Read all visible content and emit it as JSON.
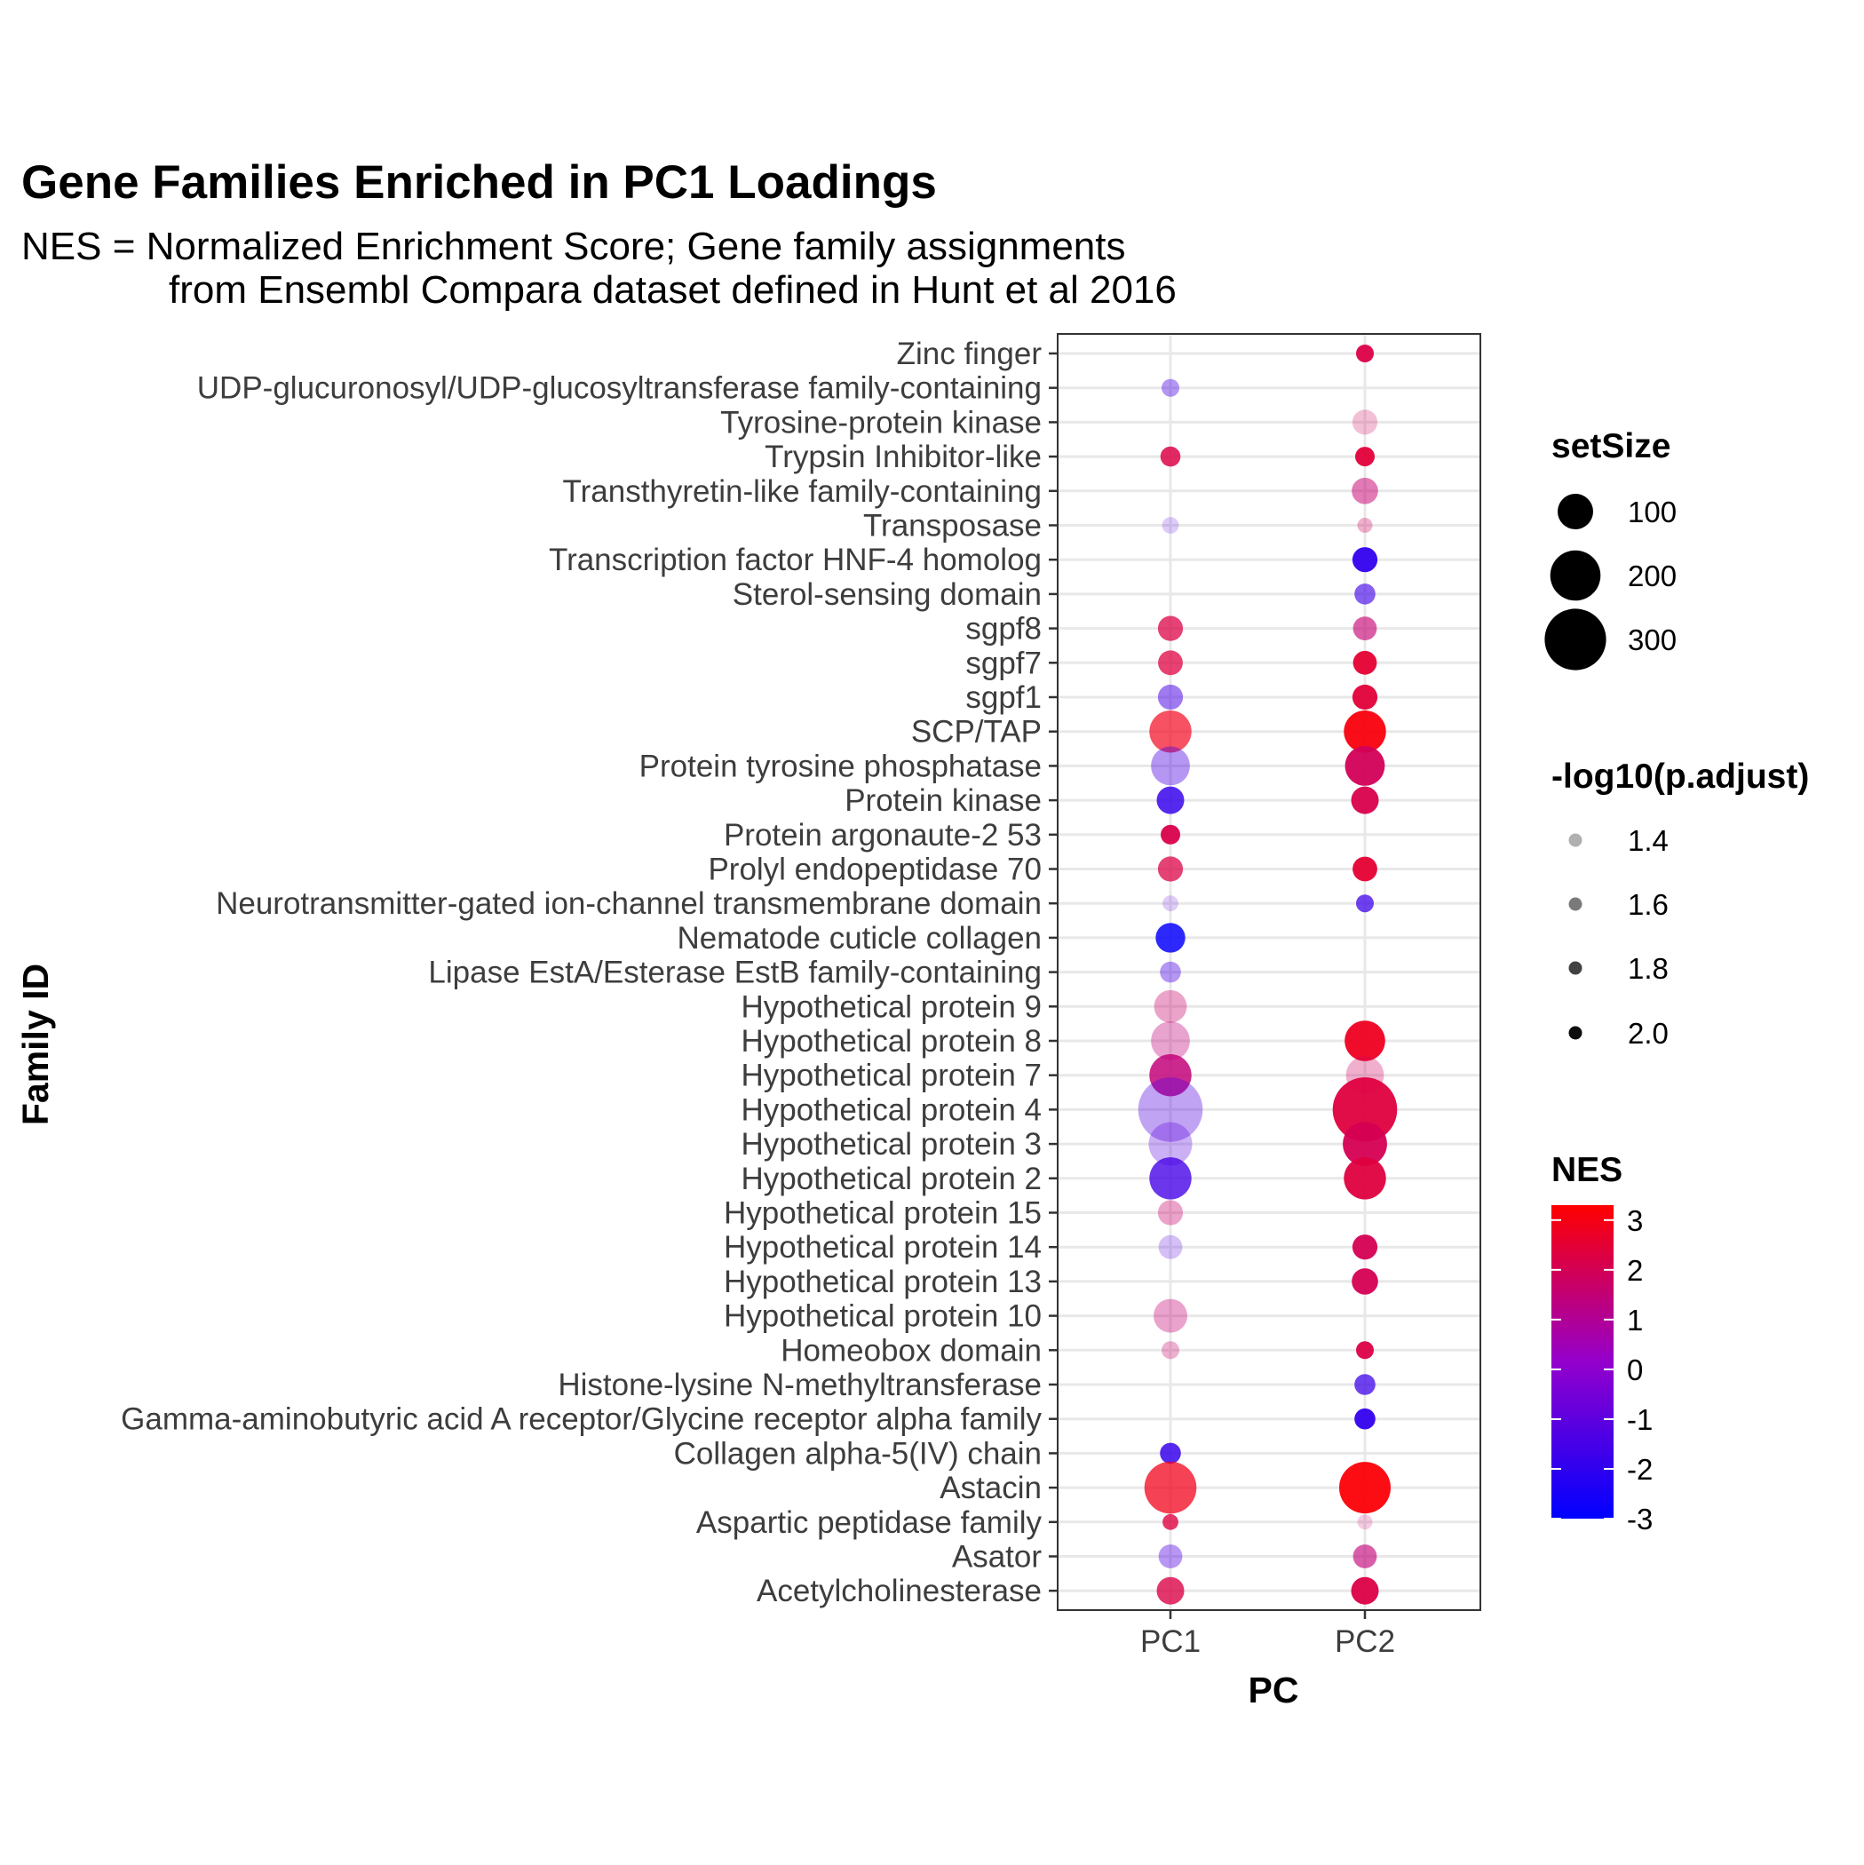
{
  "chart_data": {
    "type": "scatter",
    "title": "Gene Families Enriched in PC1 Loadings",
    "subtitle_lines": [
      "NES = Normalized Enrichment Score; Gene family assignments",
      "from Ensembl Compara dataset defined in Hunt et al 2016"
    ],
    "xlabel": "PC",
    "ylabel": "Family ID",
    "x_categories": [
      "PC1",
      "PC2"
    ],
    "y_categories": [
      "Zinc finger",
      "UDP-glucuronosyl/UDP-glucosyltransferase family-containing ",
      "Tyrosine-protein kinase",
      "Trypsin Inhibitor-like",
      "Transthyretin-like family-containing",
      "Transposase",
      "Transcription factor HNF-4 homolog",
      "Sterol-sensing domain",
      "sgpf8",
      "sgpf7",
      "sgpf1",
      "SCP/TAP",
      "Protein tyrosine phosphatase",
      "Protein kinase",
      "Protein argonaute-2 53",
      "Prolyl endopeptidase 70",
      "Neurotransmitter-gated ion-channel transmembrane domain",
      "Nematode cuticle collagen",
      "Lipase EstA/Esterase EstB family-containing",
      "Hypothetical protein 9",
      "Hypothetical protein 8",
      "Hypothetical protein 7",
      "Hypothetical protein 4",
      "Hypothetical protein 3",
      "Hypothetical protein 2",
      "Hypothetical protein 15",
      "Hypothetical protein 14",
      "Hypothetical protein 13",
      "Hypothetical protein 10",
      "Homeobox domain",
      "Histone-lysine N-methyltransferase",
      "Gamma-aminobutyric acid A receptor/Glycine receptor alpha family",
      "Collagen alpha-5(IV) chain",
      "Astacin",
      "Aspartic peptidase family",
      "Asator",
      "Acetylcholinesterase"
    ],
    "points": [
      {
        "family": "Zinc finger",
        "pc": "PC2",
        "setSize": 25,
        "nlog10p": 2.0,
        "NES": 2.2
      },
      {
        "family": "UDP-glucuronosyl/UDP-glucosyltransferase family-containing ",
        "pc": "PC1",
        "setSize": 25,
        "nlog10p": 1.5,
        "NES": -1.5
      },
      {
        "family": "Tyrosine-protein kinase",
        "pc": "PC2",
        "setSize": 50,
        "nlog10p": 1.35,
        "NES": 1.8
      },
      {
        "family": "Trypsin Inhibitor-like",
        "pc": "PC1",
        "setSize": 32,
        "nlog10p": 1.9,
        "NES": 2.2
      },
      {
        "family": "Trypsin Inhibitor-like",
        "pc": "PC2",
        "setSize": 30,
        "nlog10p": 2.0,
        "NES": 2.4
      },
      {
        "family": "Transthyretin-like family-containing",
        "pc": "PC2",
        "setSize": 55,
        "nlog10p": 1.6,
        "NES": 1.5
      },
      {
        "family": "Transposase",
        "pc": "PC1",
        "setSize": 22,
        "nlog10p": 1.3,
        "NES": -1.3
      },
      {
        "family": "Transposase",
        "pc": "PC2",
        "setSize": 18,
        "nlog10p": 1.4,
        "NES": 1.8
      },
      {
        "family": "Transcription factor HNF-4 homolog",
        "pc": "PC2",
        "setSize": 50,
        "nlog10p": 2.0,
        "NES": -2.0
      },
      {
        "family": "Sterol-sensing domain",
        "pc": "PC2",
        "setSize": 35,
        "nlog10p": 1.7,
        "NES": -1.7
      },
      {
        "family": "sgpf8",
        "pc": "PC1",
        "setSize": 50,
        "nlog10p": 1.8,
        "NES": 2.2
      },
      {
        "family": "sgpf8",
        "pc": "PC2",
        "setSize": 45,
        "nlog10p": 1.7,
        "NES": 1.5
      },
      {
        "family": "sgpf7",
        "pc": "PC1",
        "setSize": 48,
        "nlog10p": 1.8,
        "NES": 2.3
      },
      {
        "family": "sgpf7",
        "pc": "PC2",
        "setSize": 45,
        "nlog10p": 2.0,
        "NES": 2.5
      },
      {
        "family": "sgpf1",
        "pc": "PC1",
        "setSize": 50,
        "nlog10p": 1.6,
        "NES": -1.5
      },
      {
        "family": "sgpf1",
        "pc": "PC2",
        "setSize": 50,
        "nlog10p": 2.0,
        "NES": 2.4
      },
      {
        "family": "SCP/TAP",
        "pc": "PC1",
        "setSize": 140,
        "nlog10p": 1.75,
        "NES": 2.9
      },
      {
        "family": "SCP/TAP",
        "pc": "PC2",
        "setSize": 140,
        "nlog10p": 2.0,
        "NES": 3.1
      },
      {
        "family": "Protein tyrosine phosphatase",
        "pc": "PC1",
        "setSize": 120,
        "nlog10p": 1.5,
        "NES": -1.4
      },
      {
        "family": "Protein tyrosine phosphatase",
        "pc": "PC2",
        "setSize": 125,
        "nlog10p": 2.0,
        "NES": 1.9
      },
      {
        "family": "Protein kinase",
        "pc": "PC1",
        "setSize": 60,
        "nlog10p": 1.9,
        "NES": -1.9
      },
      {
        "family": "Protein kinase",
        "pc": "PC2",
        "setSize": 60,
        "nlog10p": 2.0,
        "NES": 2.1
      },
      {
        "family": "Protein argonaute-2 53",
        "pc": "PC1",
        "setSize": 30,
        "nlog10p": 2.0,
        "NES": 2.1
      },
      {
        "family": "Prolyl endopeptidase 70",
        "pc": "PC1",
        "setSize": 50,
        "nlog10p": 1.8,
        "NES": 2.2
      },
      {
        "family": "Prolyl endopeptidase 70",
        "pc": "PC2",
        "setSize": 48,
        "nlog10p": 2.0,
        "NES": 2.5
      },
      {
        "family": "Neurotransmitter-gated ion-channel transmembrane domain",
        "pc": "PC1",
        "setSize": 20,
        "nlog10p": 1.3,
        "NES": -1.0
      },
      {
        "family": "Neurotransmitter-gated ion-channel transmembrane domain",
        "pc": "PC2",
        "setSize": 25,
        "nlog10p": 1.8,
        "NES": -1.8
      },
      {
        "family": "Nematode cuticle collagen",
        "pc": "PC1",
        "setSize": 70,
        "nlog10p": 1.9,
        "NES": -2.9
      },
      {
        "family": "Lipase EstA/Esterase EstB family-containing",
        "pc": "PC1",
        "setSize": 35,
        "nlog10p": 1.5,
        "NES": -1.5
      },
      {
        "family": "Hypothetical protein 9",
        "pc": "PC1",
        "setSize": 85,
        "nlog10p": 1.45,
        "NES": 1.6
      },
      {
        "family": "Hypothetical protein 8",
        "pc": "PC1",
        "setSize": 120,
        "nlog10p": 1.45,
        "NES": 1.4
      },
      {
        "family": "Hypothetical protein 8",
        "pc": "PC2",
        "setSize": 130,
        "nlog10p": 2.0,
        "NES": 2.8
      },
      {
        "family": "Hypothetical protein 7",
        "pc": "PC1",
        "setSize": 140,
        "nlog10p": 1.9,
        "NES": 1.4
      },
      {
        "family": "Hypothetical protein 7",
        "pc": "PC2",
        "setSize": 115,
        "nlog10p": 1.4,
        "NES": 1.8
      },
      {
        "family": "Hypothetical protein 4",
        "pc": "PC1",
        "setSize": 330,
        "nlog10p": 1.45,
        "NES": -1.3
      },
      {
        "family": "Hypothetical protein 4",
        "pc": "PC2",
        "setSize": 330,
        "nlog10p": 2.0,
        "NES": 2.3
      },
      {
        "family": "Hypothetical protein 3",
        "pc": "PC1",
        "setSize": 150,
        "nlog10p": 1.4,
        "NES": -1.2
      },
      {
        "family": "Hypothetical protein 3",
        "pc": "PC2",
        "setSize": 155,
        "nlog10p": 2.0,
        "NES": 2.0
      },
      {
        "family": "Hypothetical protein 2",
        "pc": "PC1",
        "setSize": 140,
        "nlog10p": 1.85,
        "NES": -1.6
      },
      {
        "family": "Hypothetical protein 2",
        "pc": "PC2",
        "setSize": 140,
        "nlog10p": 2.0,
        "NES": 2.3
      },
      {
        "family": "Hypothetical protein 15",
        "pc": "PC1",
        "setSize": 50,
        "nlog10p": 1.45,
        "NES": 1.6
      },
      {
        "family": "Hypothetical protein 14",
        "pc": "PC1",
        "setSize": 45,
        "nlog10p": 1.35,
        "NES": -1.2
      },
      {
        "family": "Hypothetical protein 14",
        "pc": "PC2",
        "setSize": 50,
        "nlog10p": 2.0,
        "NES": 2.0
      },
      {
        "family": "Hypothetical protein 13",
        "pc": "PC2",
        "setSize": 55,
        "nlog10p": 2.0,
        "NES": 2.0
      },
      {
        "family": "Hypothetical protein 10",
        "pc": "PC1",
        "setSize": 90,
        "nlog10p": 1.45,
        "NES": 1.5
      },
      {
        "family": "Homeobox domain",
        "pc": "PC1",
        "setSize": 25,
        "nlog10p": 1.4,
        "NES": 1.6
      },
      {
        "family": "Homeobox domain",
        "pc": "PC2",
        "setSize": 25,
        "nlog10p": 2.0,
        "NES": 2.2
      },
      {
        "family": "Histone-lysine N-methyltransferase",
        "pc": "PC2",
        "setSize": 35,
        "nlog10p": 1.8,
        "NES": -1.8
      },
      {
        "family": "Gamma-aminobutyric acid A receptor/Glycine receptor alpha family",
        "pc": "PC2",
        "setSize": 35,
        "nlog10p": 2.0,
        "NES": -2.0
      },
      {
        "family": "Collagen alpha-5(IV) chain",
        "pc": "PC1",
        "setSize": 35,
        "nlog10p": 1.9,
        "NES": -1.9
      },
      {
        "family": "Astacin",
        "pc": "PC1",
        "setSize": 215,
        "nlog10p": 1.8,
        "NES": 2.9
      },
      {
        "family": "Astacin",
        "pc": "PC2",
        "setSize": 210,
        "nlog10p": 2.0,
        "NES": 3.2
      },
      {
        "family": "Aspartic peptidase family",
        "pc": "PC1",
        "setSize": 20,
        "nlog10p": 1.85,
        "NES": 2.3
      },
      {
        "family": "Aspartic peptidase family",
        "pc": "PC2",
        "setSize": 18,
        "nlog10p": 1.3,
        "NES": 1.6
      },
      {
        "family": "Asator",
        "pc": "PC1",
        "setSize": 45,
        "nlog10p": 1.5,
        "NES": -1.3
      },
      {
        "family": "Asator",
        "pc": "PC2",
        "setSize": 45,
        "nlog10p": 1.7,
        "NES": 1.4
      },
      {
        "family": "Acetylcholinesterase",
        "pc": "PC1",
        "setSize": 60,
        "nlog10p": 1.85,
        "NES": 2.2
      },
      {
        "family": "Acetylcholinesterase",
        "pc": "PC2",
        "setSize": 60,
        "nlog10p": 2.0,
        "NES": 2.2
      }
    ],
    "legend_size": {
      "title": "setSize",
      "breaks": [
        100,
        200,
        300
      ],
      "labels": [
        "100",
        "200",
        "300"
      ]
    },
    "legend_alpha": {
      "title": "-log10(p.adjust)",
      "breaks": [
        1.4,
        1.6,
        1.8,
        2.0
      ],
      "labels": [
        "1.4",
        "1.6",
        "1.8",
        "2.0"
      ]
    },
    "legend_color": {
      "title": "NES",
      "range": [
        -3,
        3.3
      ],
      "breaks": [
        3,
        2,
        1,
        0,
        -1,
        -2,
        -3
      ],
      "labels": [
        "3",
        "2",
        "1",
        "0",
        "-1",
        "-2",
        "-3"
      ],
      "low_color": "#0000ff",
      "mid_color": "#9a00c8",
      "high_color": "#ff0000"
    },
    "grid": true,
    "legend_position": "right"
  }
}
